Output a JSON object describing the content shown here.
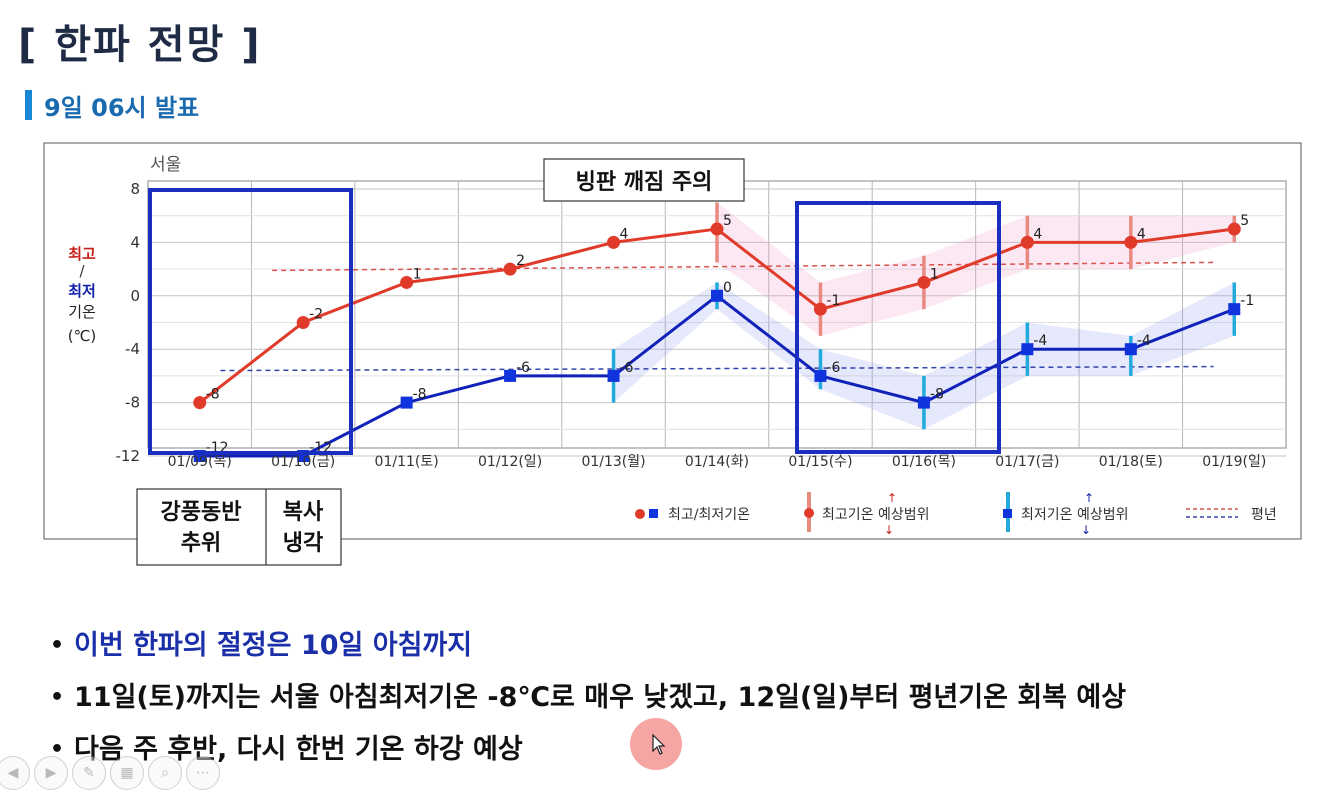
{
  "page": {
    "title": "[ 한파 전망 ]",
    "subtitle": "9일 06시 발표"
  },
  "chart_data": {
    "type": "line",
    "location_label": "서울",
    "categories": [
      "01/09(목)",
      "01/10(금)",
      "01/11(토)",
      "01/12(일)",
      "01/13(월)",
      "01/14(화)",
      "01/15(수)",
      "01/16(목)",
      "01/17(금)",
      "01/18(토)",
      "01/19(일)"
    ],
    "ylim": [
      -12,
      8
    ],
    "yticks": [
      8,
      4,
      0,
      -4,
      -8,
      -12
    ],
    "ylabel_high": "최고",
    "ylabel_slash": "/",
    "ylabel_low": "최저",
    "ylabel_temp": "기온",
    "ylabel_unit": "(℃)",
    "grid": true,
    "series": [
      {
        "name": "최고기온",
        "color": "#e03a2a",
        "values": [
          -8,
          -2,
          1,
          2,
          4,
          5,
          -1,
          1,
          4,
          4,
          5
        ],
        "labels": [
          "-8",
          "-2",
          "1",
          "2",
          "4",
          "5",
          "-1",
          "1",
          "4",
          "4",
          "5"
        ],
        "range_low": [
          null,
          null,
          null,
          null,
          null,
          2.5,
          -3,
          -1,
          2,
          2,
          4
        ],
        "range_high": [
          null,
          null,
          null,
          null,
          null,
          7,
          1,
          3,
          6,
          6,
          6
        ]
      },
      {
        "name": "최저기온",
        "color": "#1122bb",
        "values": [
          -12,
          -12,
          -8,
          -6,
          -6,
          0,
          -6,
          -8,
          -4,
          -4,
          -1
        ],
        "labels": [
          "-12",
          "-12",
          "-8",
          "-6",
          "-6",
          "0",
          "-6",
          "-8",
          "-4",
          "-4",
          "-1"
        ],
        "range_low": [
          null,
          null,
          null,
          null,
          -8,
          -1,
          -7,
          -10,
          -6,
          -6,
          -3
        ],
        "range_high": [
          null,
          null,
          null,
          null,
          -4,
          1,
          -4,
          -6,
          -2,
          -3,
          1
        ]
      }
    ],
    "normal_high": [
      1.9,
      2.5
    ],
    "normal_low": [
      -5.6,
      -5.3
    ],
    "legend": {
      "placement": "bottom-right",
      "items": [
        "최고/최저기온",
        "최고기온 예상범위",
        "최저기온 예상범위",
        "평년"
      ]
    },
    "annotations": {
      "ice_warning": "빙판 깨짐 주의",
      "cause_line1": "강풍동반",
      "cause_line2": "추위",
      "cause2_line1": "복사",
      "cause2_line2": "냉각"
    }
  },
  "bullets": [
    "이번 한파의 절정은 10일 아침까지",
    "11일(토)까지는 서울 아침최저기온 -8℃로 매우 낮겠고, 12일(일)부터 평년기온 회복 예상",
    "다음 주 후반, 다시 한번 기온 하강 예상"
  ],
  "colors": {
    "high": "#e03a2a",
    "low": "#1122bb",
    "highlight_box": "#1a2fc0",
    "title": "#1f2a44",
    "subtitle": "#1a6ab0"
  },
  "icons": [
    "prev-icon",
    "next-icon",
    "pen-icon",
    "copy-icon",
    "zoom-icon",
    "more-icon"
  ]
}
